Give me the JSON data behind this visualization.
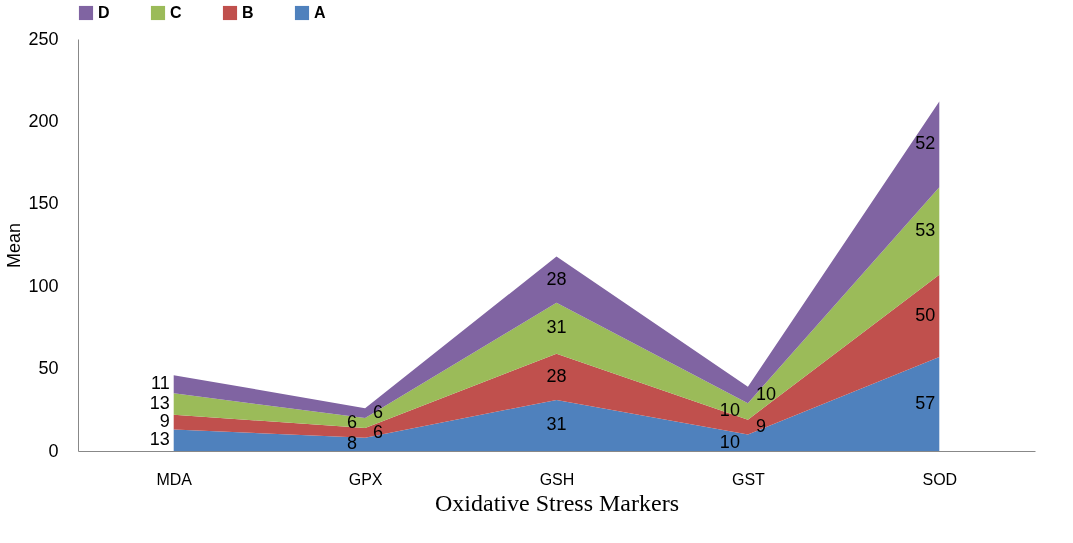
{
  "chart_data": {
    "type": "area",
    "stacked": true,
    "xlabel": "Oxidative Stress Markers",
    "ylabel": "Mean",
    "categories": [
      "MDA",
      "GPX",
      "GSH",
      "GST",
      "SOD"
    ],
    "series": [
      {
        "name": "A",
        "color": "#4f81bd",
        "values": [
          13,
          8,
          31,
          10,
          57
        ]
      },
      {
        "name": "B",
        "color": "#c0504d",
        "values": [
          9,
          6,
          28,
          9,
          50
        ]
      },
      {
        "name": "C",
        "color": "#9bbb59",
        "values": [
          13,
          6,
          31,
          10,
          53
        ]
      },
      {
        "name": "D",
        "color": "#8064a2",
        "values": [
          11,
          6,
          28,
          10,
          52
        ]
      }
    ],
    "ylim": [
      0,
      250
    ],
    "yticks": [
      0,
      50,
      100,
      150,
      200,
      250
    ],
    "grid": false,
    "legend": "top",
    "data_labels": true
  }
}
